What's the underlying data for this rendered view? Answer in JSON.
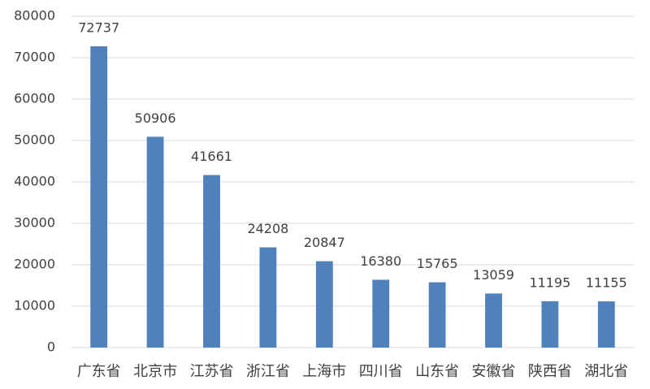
{
  "chart_data": {
    "type": "bar",
    "categories": [
      "广东省",
      "北京市",
      "江苏省",
      "浙江省",
      "上海市",
      "四川省",
      "山东省",
      "安徽省",
      "陕西省",
      "湖北省"
    ],
    "values": [
      72737,
      50906,
      41661,
      24208,
      20847,
      16380,
      15765,
      13059,
      11195,
      11155
    ],
    "color": "#4f81bd",
    "ylim": [
      0,
      80000
    ],
    "yticks": [
      0,
      10000,
      20000,
      30000,
      40000,
      50000,
      60000,
      70000,
      80000
    ],
    "grid": true
  }
}
